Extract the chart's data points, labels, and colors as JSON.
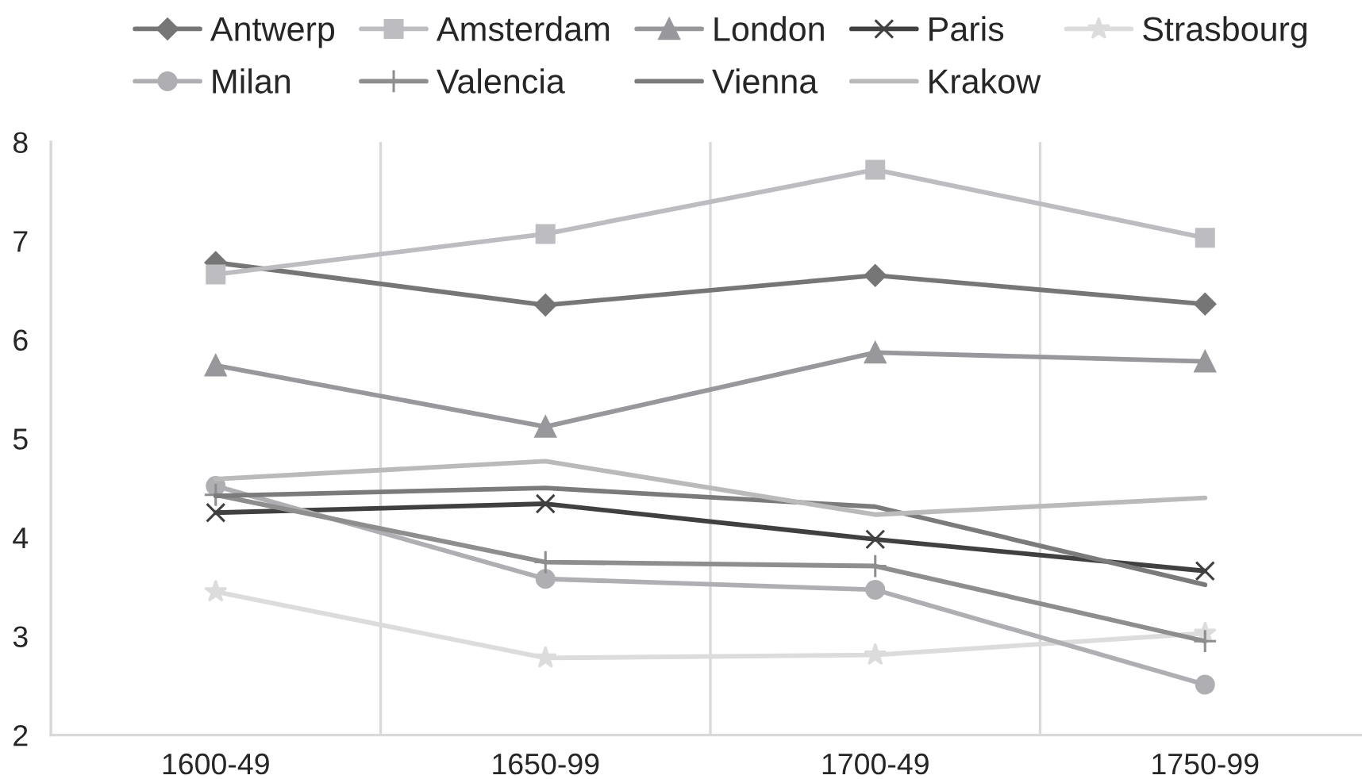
{
  "chart_data": {
    "type": "line",
    "categories": [
      "1600-49",
      "1650-99",
      "1700-49",
      "1750-99"
    ],
    "ylim": [
      2,
      8
    ],
    "yticks": [
      2,
      3,
      4,
      5,
      6,
      7,
      8
    ],
    "grid": "x",
    "legend": "top",
    "line_style": "solid",
    "series": [
      {
        "name": "Antwerp",
        "color": "#767676",
        "marker": "diamond",
        "values": [
          6.78,
          6.35,
          6.65,
          6.36
        ]
      },
      {
        "name": "Amsterdam",
        "color": "#bdbdc1",
        "marker": "square",
        "values": [
          6.66,
          7.07,
          7.72,
          7.03
        ]
      },
      {
        "name": "London",
        "color": "#98989c",
        "marker": "triangle",
        "values": [
          5.74,
          5.12,
          5.87,
          5.78
        ]
      },
      {
        "name": "Paris",
        "color": "#404040",
        "marker": "cross",
        "values": [
          4.25,
          4.34,
          3.98,
          3.66
        ]
      },
      {
        "name": "Strasbourg",
        "color": "#dcdcdc",
        "marker": "star",
        "values": [
          3.45,
          2.78,
          2.81,
          3.03
        ]
      },
      {
        "name": "Milan",
        "color": "#afafb3",
        "marker": "circle",
        "values": [
          4.52,
          3.58,
          3.47,
          2.51
        ]
      },
      {
        "name": "Valencia",
        "color": "#8e8e8e",
        "marker": "plus",
        "values": [
          4.43,
          3.75,
          3.71,
          2.95
        ]
      },
      {
        "name": "Vienna",
        "color": "#7b7b7b",
        "marker": "none",
        "values": [
          4.42,
          4.5,
          4.31,
          3.52
        ]
      },
      {
        "name": "Krakow",
        "color": "#bababa",
        "marker": "none",
        "values": [
          4.59,
          4.77,
          4.23,
          4.4
        ]
      }
    ]
  }
}
